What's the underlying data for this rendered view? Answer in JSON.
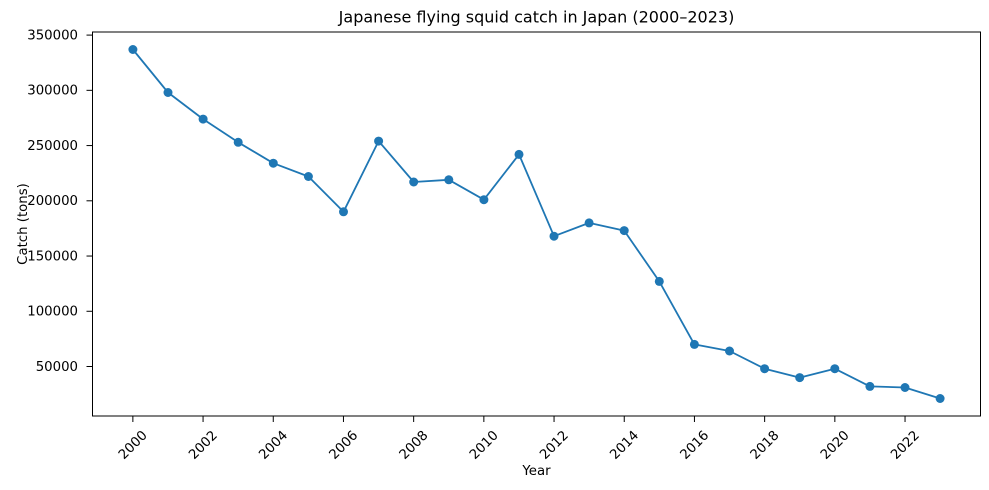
{
  "chart_data": {
    "type": "line",
    "title": "Japanese flying squid catch in Japan (2000–2023)",
    "xlabel": "Year",
    "ylabel": "Catch (tons)",
    "x": [
      2000,
      2001,
      2002,
      2003,
      2004,
      2005,
      2006,
      2007,
      2008,
      2009,
      2010,
      2011,
      2012,
      2013,
      2014,
      2015,
      2016,
      2017,
      2018,
      2019,
      2020,
      2021,
      2022,
      2023
    ],
    "values": [
      337000,
      298000,
      274000,
      253000,
      234000,
      222000,
      190000,
      254000,
      217000,
      219000,
      201000,
      242000,
      168000,
      180000,
      173000,
      127000,
      70000,
      64000,
      48000,
      40000,
      48000,
      32000,
      31000,
      21000
    ],
    "series_name": "Japanese flying squid catch",
    "line_color": "#1f77b4",
    "marker": "circle",
    "grid": false,
    "legend_position": "none",
    "xlim": [
      1998.85,
      2024.15
    ],
    "ylim": [
      5200,
      352800
    ],
    "x_ticks": [
      2000,
      2002,
      2004,
      2006,
      2008,
      2010,
      2012,
      2014,
      2016,
      2018,
      2020,
      2022
    ],
    "x_tick_labels": [
      "2000",
      "2002",
      "2004",
      "2006",
      "2008",
      "2010",
      "2012",
      "2014",
      "2016",
      "2018",
      "2020",
      "2022"
    ],
    "x_tick_rotation": 45,
    "y_ticks": [
      50000,
      100000,
      150000,
      200000,
      250000,
      300000,
      350000
    ],
    "y_tick_labels": [
      "50000",
      "100000",
      "150000",
      "200000",
      "250000",
      "300000",
      "350000"
    ],
    "axis_color": "#000000"
  }
}
